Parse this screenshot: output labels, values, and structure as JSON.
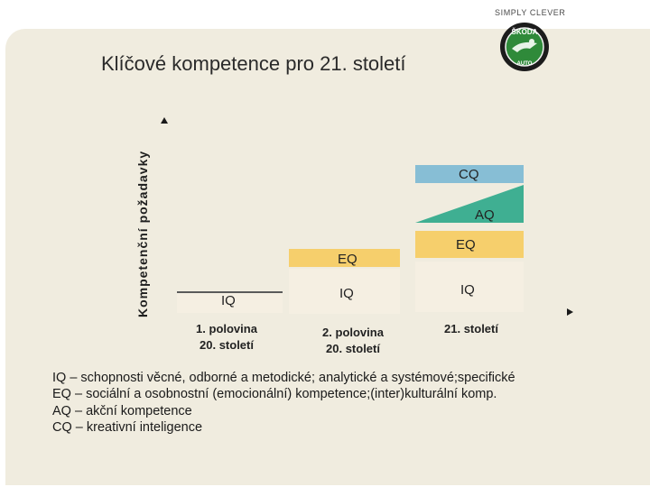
{
  "brand": {
    "tagline": "SIMPLY CLEVER",
    "logo_text": "ŠKODA",
    "logo_sub": "AUTO"
  },
  "slide": {
    "title": "Klíčové kompetence pro 21. století",
    "y_axis_label": "Kompetenční požadavky"
  },
  "diagram": {
    "periods": [
      {
        "label": "1. polovina\n20. století",
        "bars": [
          "IQ"
        ]
      },
      {
        "label": "2. polovina\n20. století",
        "bars": [
          "IQ",
          "EQ"
        ]
      },
      {
        "label": "21. století",
        "bars": [
          "IQ",
          "EQ",
          "AQ",
          "CQ"
        ]
      }
    ],
    "colors": {
      "EQ": "#f6cf6c",
      "AQ": "#3faf92",
      "CQ": "#87bed5",
      "IQ": "#f5efe2"
    }
  },
  "legend": [
    " IQ – schopnosti věcné, odborné a metodické; analytické a systémové;specifické",
    "EQ – sociální a osobnostní (emocionální) kompetence;(inter)kulturální komp.",
    "AQ – akční kompetence",
    "CQ – kreativní inteligence"
  ]
}
